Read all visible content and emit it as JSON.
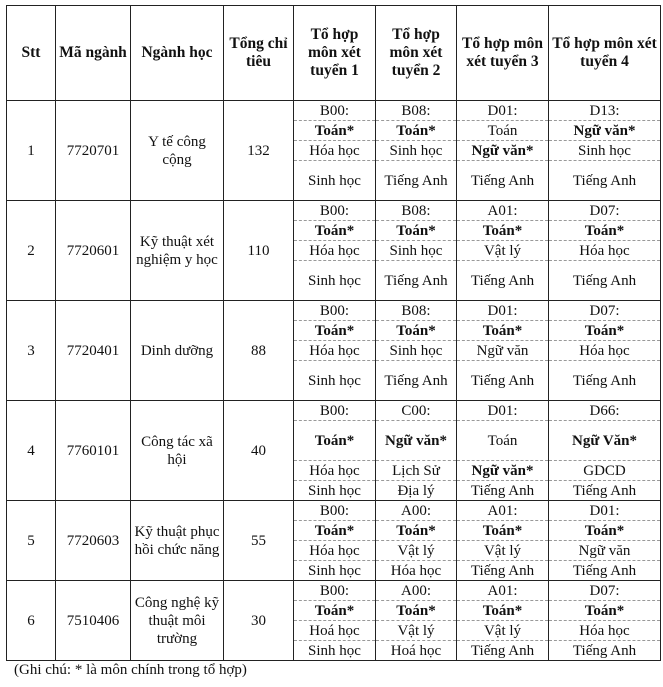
{
  "headers": [
    "Stt",
    "Mã ngành",
    "Ngành học",
    "Tổng chỉ tiêu",
    "Tổ hợp môn xét tuyển 1",
    "Tổ hợp môn xét tuyển 2",
    "Tổ hợp môn xét tuyển 3",
    "Tổ hợp môn xét tuyển 4"
  ],
  "rows": [
    {
      "stt": "1",
      "code": "7720701",
      "name": "Y tế công cộng",
      "quota": "132",
      "combos": [
        [
          {
            "t": "B00:"
          },
          {
            "t": "Toán*",
            "b": true
          },
          {
            "t": "Hóa học"
          },
          {
            "t": "Sinh học"
          }
        ],
        [
          {
            "t": "B08:"
          },
          {
            "t": "Toán*",
            "b": true
          },
          {
            "t": "Sinh học"
          },
          {
            "t": "Tiếng Anh"
          }
        ],
        [
          {
            "t": "D01:"
          },
          {
            "t": "Toán"
          },
          {
            "t": "Ngữ văn*",
            "b": true
          },
          {
            "t": "Tiếng Anh"
          }
        ],
        [
          {
            "t": "D13:"
          },
          {
            "t": "Ngữ văn*",
            "b": true
          },
          {
            "t": "Sinh học"
          },
          {
            "t": "Tiếng Anh"
          }
        ]
      ]
    },
    {
      "stt": "2",
      "code": "7720601",
      "name": "Kỹ thuật xét nghiệm y học",
      "quota": "110",
      "combos": [
        [
          {
            "t": "B00:"
          },
          {
            "t": "Toán*",
            "b": true
          },
          {
            "t": "Hóa học"
          },
          {
            "t": "Sinh học"
          }
        ],
        [
          {
            "t": "B08:"
          },
          {
            "t": "Toán*",
            "b": true
          },
          {
            "t": "Sinh học"
          },
          {
            "t": "Tiếng Anh"
          }
        ],
        [
          {
            "t": "A01:"
          },
          {
            "t": "Toán*",
            "b": true
          },
          {
            "t": "Vật lý"
          },
          {
            "t": "Tiếng Anh"
          }
        ],
        [
          {
            "t": "D07:"
          },
          {
            "t": "Toán*",
            "b": true
          },
          {
            "t": "Hóa học"
          },
          {
            "t": "Tiếng Anh"
          }
        ]
      ]
    },
    {
      "stt": "3",
      "code": "7720401",
      "name": "Dinh dưỡng",
      "quota": "88",
      "combos": [
        [
          {
            "t": "B00:"
          },
          {
            "t": "Toán*",
            "b": true
          },
          {
            "t": "Hóa học"
          },
          {
            "t": "Sinh học"
          }
        ],
        [
          {
            "t": "B08:"
          },
          {
            "t": "Toán*",
            "b": true
          },
          {
            "t": "Sinh học"
          },
          {
            "t": "Tiếng Anh"
          }
        ],
        [
          {
            "t": "D01:"
          },
          {
            "t": "Toán*",
            "b": true
          },
          {
            "t": "Ngữ văn"
          },
          {
            "t": "Tiếng Anh"
          }
        ],
        [
          {
            "t": "D07:"
          },
          {
            "t": "Toán*",
            "b": true
          },
          {
            "t": "Hóa học"
          },
          {
            "t": "Tiếng Anh"
          }
        ]
      ]
    },
    {
      "stt": "4",
      "code": "7760101",
      "name": "Công tác xã hội",
      "quota": "40",
      "combos": [
        [
          {
            "t": "B00:"
          },
          {
            "t": "Toán*",
            "b": true
          },
          {
            "t": "Hóa học"
          },
          {
            "t": "Sinh học"
          }
        ],
        [
          {
            "t": "C00:"
          },
          {
            "t": "Ngữ văn*",
            "b": true
          },
          {
            "t": "Lịch Sử"
          },
          {
            "t": "Địa lý"
          }
        ],
        [
          {
            "t": "D01:"
          },
          {
            "t": "Toán"
          },
          {
            "t": "Ngữ văn*",
            "b": true
          },
          {
            "t": "Tiếng Anh"
          }
        ],
        [
          {
            "t": "D66:"
          },
          {
            "t": "Ngữ Văn*",
            "b": true
          },
          {
            "t": "GDCD"
          },
          {
            "t": "Tiếng Anh"
          }
        ]
      ]
    },
    {
      "stt": "5",
      "code": "7720603",
      "name": "Kỹ thuật phục hồi chức năng",
      "quota": "55",
      "combos": [
        [
          {
            "t": "B00:"
          },
          {
            "t": "Toán*",
            "b": true
          },
          {
            "t": "Hóa học"
          },
          {
            "t": "Sinh học"
          }
        ],
        [
          {
            "t": "A00:"
          },
          {
            "t": "Toán*",
            "b": true
          },
          {
            "t": "Vật lý"
          },
          {
            "t": "Hóa học"
          }
        ],
        [
          {
            "t": "A01:"
          },
          {
            "t": "Toán*",
            "b": true
          },
          {
            "t": "Vật lý"
          },
          {
            "t": "Tiếng Anh"
          }
        ],
        [
          {
            "t": "D01:"
          },
          {
            "t": "Toán*",
            "b": true
          },
          {
            "t": "Ngữ văn"
          },
          {
            "t": "Tiếng Anh"
          }
        ]
      ]
    },
    {
      "stt": "6",
      "code": "7510406",
      "name": "Công nghệ kỹ thuật môi trường",
      "quota": "30",
      "combos": [
        [
          {
            "t": "B00:"
          },
          {
            "t": "Toán*",
            "b": true
          },
          {
            "t": "Hoá học"
          },
          {
            "t": "Sinh học"
          }
        ],
        [
          {
            "t": "A00:"
          },
          {
            "t": "Toán*",
            "b": true
          },
          {
            "t": "Vật  lý"
          },
          {
            "t": "Hoá học"
          }
        ],
        [
          {
            "t": "A01:"
          },
          {
            "t": "Toán*",
            "b": true
          },
          {
            "t": "Vật lý"
          },
          {
            "t": "Tiếng Anh"
          }
        ],
        [
          {
            "t": "D07:"
          },
          {
            "t": "Toán*",
            "b": true
          },
          {
            "t": "Hóa học"
          },
          {
            "t": "Tiếng Anh"
          }
        ]
      ]
    }
  ],
  "note": "(Ghi chú: * là môn chính trong tổ hợp)"
}
